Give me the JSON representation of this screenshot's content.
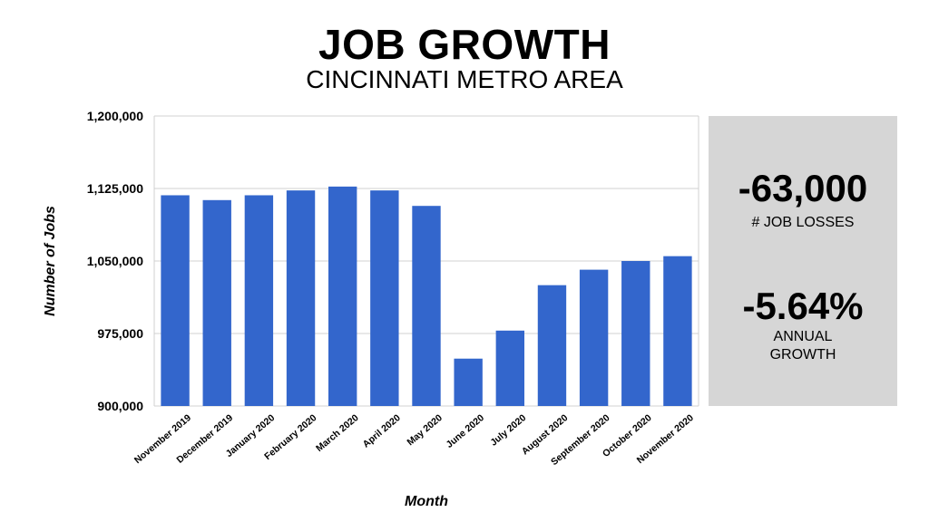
{
  "header": {
    "title": "JOB GROWTH",
    "subtitle": "CINCINNATI METRO AREA"
  },
  "stats": {
    "job_losses_value": "-63,000",
    "job_losses_label": "# JOB LOSSES",
    "growth_value": "-5.64%",
    "growth_label_line1": "ANNUAL",
    "growth_label_line2": "GROWTH"
  },
  "colors": {
    "bar": "#3366cc",
    "grid": "#d0d0d0",
    "panel": "#d6d6d6"
  },
  "chart_data": {
    "type": "bar",
    "xlabel": "Month",
    "ylabel": "Number of Jobs",
    "ylim": [
      900000,
      1200000
    ],
    "yticks": [
      900000,
      975000,
      1050000,
      1125000,
      1200000
    ],
    "ytick_labels": [
      "900,000",
      "975,000",
      "1,050,000",
      "1,125,000",
      "1,200,000"
    ],
    "grid": true,
    "categories": [
      "November 2019",
      "December 2019",
      "January 2020",
      "February 2020",
      "March 2020",
      "April 2020",
      "May 2020",
      "June 2020",
      "July 2020",
      "August 2020",
      "September 2020",
      "October 2020",
      "November 2020"
    ],
    "values": [
      1118000,
      1113000,
      1118000,
      1123000,
      1127000,
      1123000,
      1107000,
      949000,
      978000,
      1025000,
      1041000,
      1050000,
      1055000
    ]
  }
}
